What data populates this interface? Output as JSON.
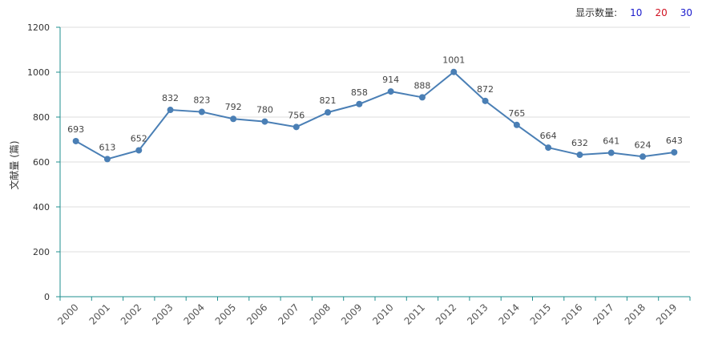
{
  "controls": {
    "show_count_label": "显示数量:",
    "options": [
      {
        "label": "10",
        "color": "#1a1acc"
      },
      {
        "label": "20",
        "color": "#d01020"
      },
      {
        "label": "30",
        "color": "#1a1acc"
      }
    ]
  },
  "colors": {
    "line": "#4a7fb5",
    "axis": "#1f8f8f",
    "grid": "#dddddd"
  },
  "chart_data": {
    "type": "line",
    "title": "",
    "xlabel": "",
    "ylabel": "文献量 (篇)",
    "categories": [
      "2000",
      "2001",
      "2002",
      "2003",
      "2004",
      "2005",
      "2006",
      "2007",
      "2008",
      "2009",
      "2010",
      "2011",
      "2012",
      "2013",
      "2014",
      "2015",
      "2016",
      "2017",
      "2018",
      "2019"
    ],
    "series": [
      {
        "name": "",
        "values": [
          693,
          613,
          652,
          832,
          823,
          792,
          780,
          756,
          821,
          858,
          914,
          888,
          1001,
          872,
          765,
          664,
          632,
          641,
          624,
          643
        ]
      }
    ],
    "ylim": [
      0,
      1200
    ],
    "yticks": [
      0,
      200,
      400,
      600,
      800,
      1000,
      1200
    ],
    "grid": true,
    "data_labels": true
  }
}
